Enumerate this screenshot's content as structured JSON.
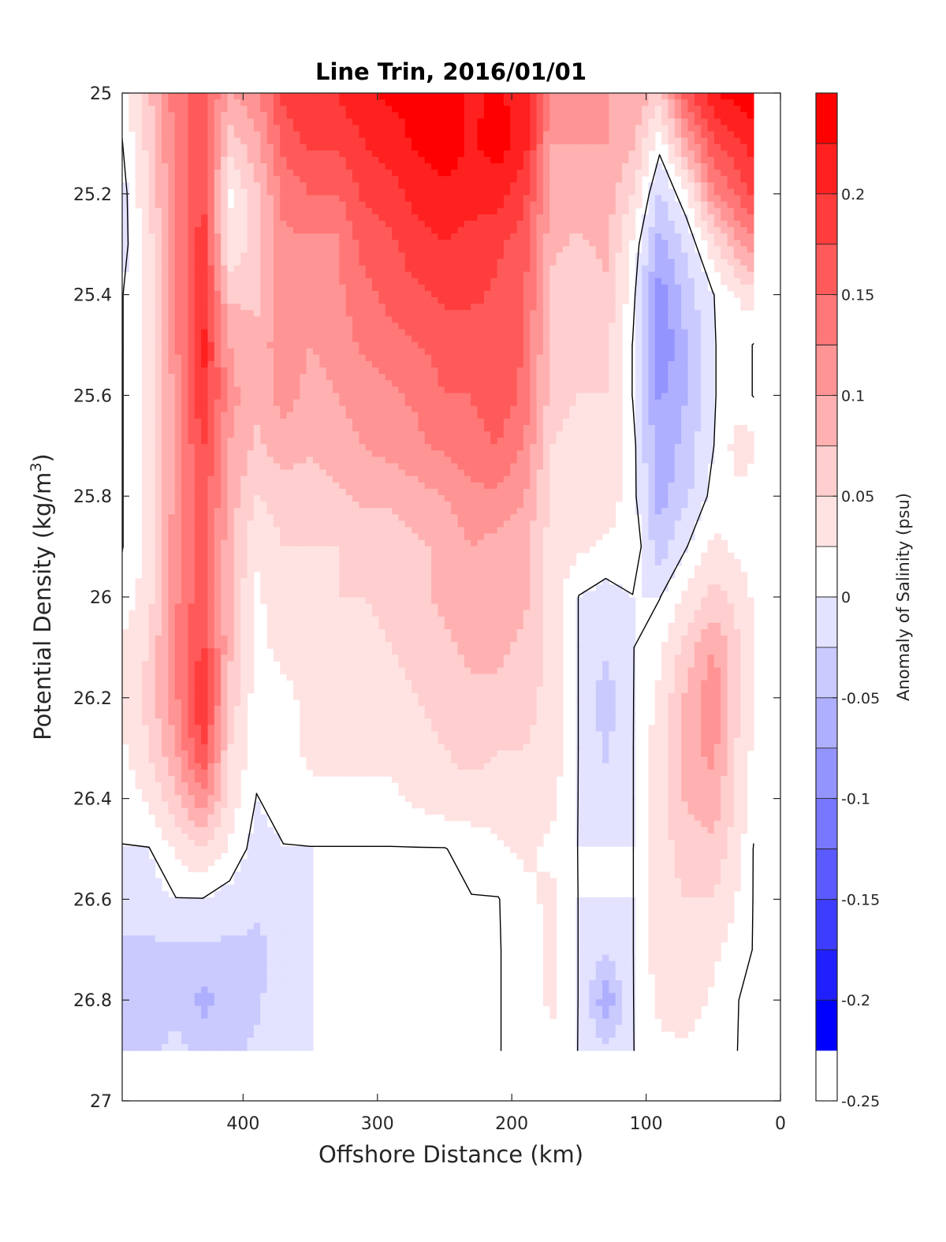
{
  "chart_data": {
    "type": "heatmap",
    "subtype": "filled-contour",
    "title": "Line Trin, 2016/01/01",
    "xlabel": "Offshore Distance (km)",
    "ylabel_prefix": "Potential Density (kg/m",
    "ylabel_sup": "3",
    "ylabel_suffix": ")",
    "colorbar_label": "Anomaly of Salinity (psu)",
    "xlim": [
      490,
      0
    ],
    "x_reversed": true,
    "ylim": [
      25,
      27
    ],
    "y_reversed": true,
    "x_ticks": [
      400,
      300,
      200,
      100,
      0
    ],
    "x_tick_labels": [
      "400",
      "300",
      "200",
      "100",
      "0"
    ],
    "y_ticks": [
      25,
      25.2,
      25.4,
      25.6,
      25.8,
      26,
      26.2,
      26.4,
      26.6,
      26.8,
      27
    ],
    "y_tick_labels": [
      "25",
      "25.2",
      "25.4",
      "25.6",
      "25.8",
      "26",
      "26.2",
      "26.4",
      "26.6",
      "26.8",
      "27"
    ],
    "colorbar_range": [
      -0.25,
      0.25
    ],
    "colorbar_ticks": [
      0.2,
      0.15,
      0.1,
      0.05,
      0,
      -0.05,
      -0.1,
      -0.15,
      -0.2,
      -0.25
    ],
    "colorbar_tick_labels": [
      "0.2",
      "0.15",
      "0.1",
      "0.05",
      "0",
      "-0.05",
      "-0.1",
      "-0.15",
      "-0.2",
      "-0.25"
    ],
    "colorbar_levels": [
      0.25,
      0.225,
      0.2,
      0.175,
      0.15,
      0.125,
      0.1,
      0.075,
      0.05,
      0.025,
      0,
      -0.025,
      -0.05,
      -0.075,
      -0.1,
      -0.125,
      -0.15,
      -0.175,
      -0.2,
      -0.225,
      -0.25
    ],
    "colorbar_bands": [
      "#ff0000",
      "#ff2020",
      "#ff3d3d",
      "#ff5a5a",
      "#ff7777",
      "#ff9494",
      "#ffb1b1",
      "#ffcece",
      "#ffe3e3",
      "#ffffff",
      "#e3e3ff",
      "#cacaff",
      "#afafff",
      "#9494ff",
      "#7777ff",
      "#5a5aff",
      "#3d3dff",
      "#2020ff",
      "#0000ff"
    ],
    "zero_contour_color": "#000000",
    "field_grid": {
      "x": [
        490,
        470,
        450,
        430,
        410,
        390,
        370,
        350,
        330,
        310,
        290,
        270,
        250,
        230,
        210,
        190,
        170,
        150,
        130,
        110,
        90,
        70,
        50,
        30,
        20
      ],
      "y": [
        25,
        25.1,
        25.2,
        25.3,
        25.4,
        25.5,
        25.6,
        25.7,
        25.8,
        25.9,
        26,
        26.1,
        26.2,
        26.3,
        26.4,
        26.5,
        26.6,
        26.7,
        26.8,
        26.9
      ],
      "values": [
        [
          0.01,
          0.07,
          0.14,
          0.16,
          0.1,
          0.12,
          0.18,
          0.2,
          0.2,
          0.22,
          0.23,
          0.24,
          0.25,
          0.22,
          0.23,
          0.21,
          0.11,
          0.1,
          0.1,
          0.1,
          0.06,
          0.17,
          0.22,
          0.24,
          0.24
        ],
        [
          0.0,
          0.06,
          0.13,
          0.17,
          0.06,
          0.09,
          0.16,
          0.18,
          0.18,
          0.2,
          0.21,
          0.23,
          0.24,
          0.22,
          0.24,
          0.21,
          0.1,
          0.1,
          0.1,
          0.08,
          0.01,
          0.1,
          0.17,
          0.2,
          0.21
        ],
        [
          -0.01,
          0.05,
          0.13,
          0.18,
          0.02,
          0.07,
          0.13,
          0.15,
          0.15,
          0.18,
          0.19,
          0.21,
          0.22,
          0.21,
          0.21,
          0.18,
          0.09,
          0.09,
          0.09,
          0.05,
          -0.03,
          0.02,
          0.12,
          0.16,
          0.18
        ],
        [
          -0.01,
          0.04,
          0.12,
          0.19,
          0.03,
          0.06,
          0.12,
          0.12,
          0.12,
          0.16,
          0.17,
          0.19,
          0.2,
          0.19,
          0.18,
          0.16,
          0.08,
          0.07,
          0.08,
          0.02,
          -0.06,
          -0.02,
          0.04,
          0.1,
          0.12
        ],
        [
          0.0,
          0.03,
          0.12,
          0.2,
          0.07,
          0.07,
          0.12,
          0.11,
          0.12,
          0.14,
          0.16,
          0.17,
          0.18,
          0.18,
          0.17,
          0.15,
          0.07,
          0.06,
          0.07,
          0.01,
          -0.09,
          -0.04,
          0.0,
          0.03,
          0.04
        ],
        [
          0.0,
          0.03,
          0.12,
          0.21,
          0.1,
          0.08,
          0.12,
          0.1,
          0.11,
          0.13,
          0.14,
          0.15,
          0.16,
          0.16,
          0.17,
          0.15,
          0.06,
          0.06,
          0.06,
          0.0,
          -0.1,
          -0.05,
          0.0,
          0.01,
          0.0
        ],
        [
          0.0,
          0.03,
          0.11,
          0.2,
          0.11,
          0.08,
          0.11,
          0.09,
          0.1,
          0.11,
          0.12,
          0.13,
          0.15,
          0.15,
          0.17,
          0.14,
          0.06,
          0.05,
          0.05,
          0.0,
          -0.08,
          -0.05,
          0.0,
          0.01,
          0.0
        ],
        [
          0.0,
          0.03,
          0.11,
          0.18,
          0.1,
          0.07,
          0.09,
          0.08,
          0.09,
          0.1,
          0.11,
          0.12,
          0.13,
          0.14,
          0.15,
          0.12,
          0.05,
          0.04,
          0.05,
          0.01,
          -0.07,
          -0.04,
          0.0,
          0.04,
          0.03
        ],
        [
          0.0,
          0.03,
          0.11,
          0.17,
          0.09,
          0.05,
          0.06,
          0.06,
          0.07,
          0.08,
          0.08,
          0.09,
          0.1,
          0.12,
          0.12,
          0.1,
          0.04,
          0.04,
          0.04,
          0.01,
          -0.06,
          -0.03,
          0.01,
          0.02,
          0.01
        ],
        [
          0.0,
          0.03,
          0.12,
          0.17,
          0.08,
          0.03,
          0.05,
          0.05,
          0.05,
          0.06,
          0.06,
          0.07,
          0.08,
          0.1,
          0.09,
          0.08,
          0.04,
          0.03,
          0.02,
          0.02,
          -0.04,
          0.0,
          0.03,
          0.02,
          0.01
        ],
        [
          0.01,
          0.04,
          0.12,
          0.17,
          0.08,
          0.02,
          0.04,
          0.04,
          0.05,
          0.05,
          0.06,
          0.07,
          0.08,
          0.09,
          0.09,
          0.08,
          0.04,
          0.0,
          -0.01,
          0.0,
          0.0,
          0.03,
          0.06,
          0.04,
          0.02
        ],
        [
          0.03,
          0.05,
          0.13,
          0.18,
          0.08,
          0.02,
          0.03,
          0.03,
          0.04,
          0.04,
          0.05,
          0.06,
          0.07,
          0.08,
          0.08,
          0.07,
          0.04,
          0.0,
          -0.02,
          0.0,
          0.02,
          0.06,
          0.1,
          0.05,
          0.03
        ],
        [
          0.03,
          0.06,
          0.12,
          0.2,
          0.07,
          0.01,
          0.02,
          0.03,
          0.03,
          0.04,
          0.04,
          0.05,
          0.06,
          0.07,
          0.07,
          0.06,
          0.04,
          0.0,
          -0.04,
          0.0,
          0.03,
          0.08,
          0.12,
          0.05,
          0.03
        ],
        [
          0.02,
          0.05,
          0.1,
          0.18,
          0.05,
          0.01,
          0.02,
          0.03,
          0.03,
          0.03,
          0.03,
          0.04,
          0.05,
          0.06,
          0.05,
          0.05,
          0.04,
          0.0,
          -0.03,
          0.0,
          0.04,
          0.09,
          0.11,
          0.04,
          0.02
        ],
        [
          0.01,
          0.03,
          0.07,
          0.12,
          0.04,
          0.0,
          0.01,
          0.02,
          0.02,
          0.02,
          0.02,
          0.03,
          0.04,
          0.04,
          0.04,
          0.04,
          0.03,
          0.0,
          -0.01,
          0.0,
          0.04,
          0.08,
          0.09,
          0.04,
          0.01
        ],
        [
          0.0,
          0.0,
          0.03,
          0.05,
          0.02,
          -0.01,
          0.0,
          0.0,
          0.0,
          0.0,
          0.0,
          0.0,
          0.0,
          0.01,
          0.02,
          0.03,
          0.02,
          0.0,
          0.0,
          0.0,
          0.04,
          0.06,
          0.07,
          0.03,
          0.0
        ],
        [
          -0.01,
          -0.01,
          0.0,
          0.0,
          -0.01,
          -0.02,
          -0.01,
          0.0,
          0.0,
          0.0,
          0.0,
          0.0,
          0.0,
          0.0,
          0.0,
          0.02,
          0.03,
          0.0,
          0.0,
          0.0,
          0.04,
          0.05,
          0.05,
          0.02,
          0.0
        ],
        [
          -0.03,
          -0.03,
          -0.03,
          -0.03,
          -0.03,
          -0.03,
          -0.02,
          0.0,
          0.0,
          0.0,
          0.0,
          0.0,
          0.0,
          0.0,
          0.0,
          0.01,
          0.03,
          0.0,
          -0.02,
          0.0,
          0.04,
          0.05,
          0.03,
          0.01,
          0.0
        ],
        [
          -0.03,
          -0.03,
          -0.03,
          -0.06,
          -0.04,
          -0.03,
          -0.01,
          0.0,
          0.0,
          0.0,
          0.0,
          0.0,
          0.0,
          0.0,
          0.0,
          0.01,
          0.03,
          0.0,
          -0.07,
          0.0,
          0.03,
          0.04,
          0.02,
          0.0,
          0.0
        ],
        [
          -0.03,
          -0.03,
          -0.02,
          -0.03,
          -0.03,
          -0.02,
          0.0,
          0.0,
          0.0,
          0.0,
          0.0,
          0.0,
          0.0,
          0.0,
          0.0,
          0.01,
          0.02,
          0.0,
          -0.02,
          0.0,
          0.02,
          0.02,
          0.01,
          0.0,
          0.0
        ]
      ]
    }
  }
}
